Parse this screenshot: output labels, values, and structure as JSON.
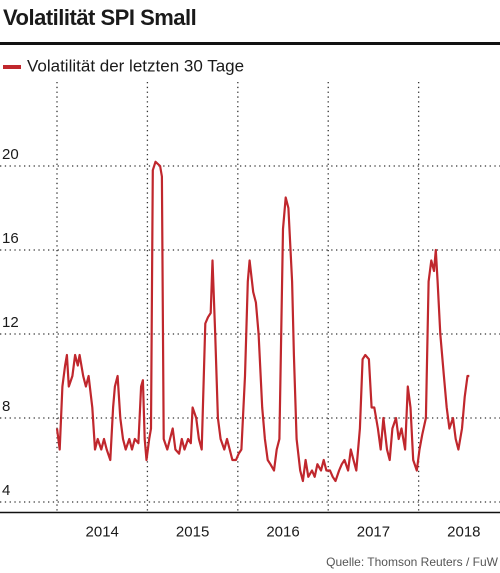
{
  "chart_data": {
    "type": "line",
    "title": "Volatilität SPI Small",
    "source": "Quelle: Thomson Reuters / FuW",
    "x": [
      2014.0,
      2014.03,
      2014.06,
      2014.09,
      2014.11,
      2014.13,
      2014.17,
      2014.2,
      2014.23,
      2014.25,
      2014.29,
      2014.32,
      2014.35,
      2014.39,
      2014.42,
      2014.45,
      2014.49,
      2014.52,
      2014.55,
      2014.59,
      2014.62,
      2014.64,
      2014.67,
      2014.7,
      2014.73,
      2014.76,
      2014.8,
      2014.83,
      2014.86,
      2014.9,
      2014.93,
      2014.95,
      2014.97,
      2014.99,
      2015.02,
      2015.04,
      2015.06,
      2015.09,
      2015.14,
      2015.16,
      2015.18,
      2015.22,
      2015.25,
      2015.28,
      2015.31,
      2015.35,
      2015.38,
      2015.41,
      2015.45,
      2015.48,
      2015.5,
      2015.54,
      2015.57,
      2015.6,
      2015.64,
      2015.67,
      2015.7,
      2015.72,
      2015.75,
      2015.78,
      2015.81,
      2015.85,
      2015.88,
      2015.91,
      2015.94,
      2015.98,
      2016.01,
      2016.04,
      2016.08,
      2016.11,
      2016.13,
      2016.17,
      2016.2,
      2016.23,
      2016.27,
      2016.3,
      2016.33,
      2016.36,
      2016.4,
      2016.43,
      2016.46,
      2016.5,
      2016.53,
      2016.56,
      2016.6,
      2016.62,
      2016.65,
      2016.69,
      2016.72,
      2016.75,
      2016.78,
      2016.82,
      2016.85,
      2016.88,
      2016.92,
      2016.95,
      2016.98,
      2017.02,
      2017.05,
      2017.08,
      2017.12,
      2017.15,
      2017.18,
      2017.22,
      2017.25,
      2017.28,
      2017.31,
      2017.35,
      2017.38,
      2017.41,
      2017.45,
      2017.48,
      2017.51,
      2017.55,
      2017.58,
      2017.61,
      2017.65,
      2017.68,
      2017.71,
      2017.75,
      2017.78,
      2017.81,
      2017.85,
      2017.88,
      2017.91,
      2017.94,
      2017.98,
      2018.01,
      2018.04,
      2018.08,
      2018.11,
      2018.14,
      2018.17,
      2018.19,
      2018.21,
      2018.24,
      2018.28,
      2018.31,
      2018.34,
      2018.38,
      2018.41,
      2018.44,
      2018.48,
      2018.51,
      2018.54,
      2018.56
    ],
    "series": [
      {
        "name": "Volatilität der letzten 30 Tage",
        "color": "#c0272d",
        "values": [
          7.5,
          6.5,
          9.5,
          10.5,
          11,
          9.5,
          10,
          11,
          10.5,
          11,
          10,
          9.5,
          10,
          8.5,
          6.5,
          7,
          6.5,
          7,
          6.5,
          6,
          8.5,
          9.5,
          10,
          8,
          7,
          6.5,
          7,
          6.5,
          7,
          6.8,
          9.5,
          9.8,
          7,
          6,
          7,
          7.5,
          19.8,
          20.2,
          20,
          19.5,
          7,
          6.5,
          7,
          7.5,
          6.5,
          6.3,
          7,
          6.5,
          7,
          6.8,
          8.5,
          8,
          7,
          6.5,
          12.5,
          12.8,
          13,
          15.5,
          12,
          8,
          7,
          6.5,
          7,
          6.5,
          6,
          6,
          6.3,
          6.5,
          10,
          14.5,
          15.5,
          14,
          13.5,
          12,
          8.5,
          7,
          6,
          5.8,
          5.5,
          6.5,
          7,
          17,
          18.5,
          18,
          14.5,
          11,
          7,
          5.5,
          5,
          6,
          5.2,
          5.5,
          5.2,
          5.8,
          5.5,
          6,
          5.5,
          5.5,
          5.2,
          5,
          5.5,
          5.8,
          6,
          5.5,
          6.5,
          6,
          5.5,
          7.5,
          10.8,
          11,
          10.8,
          8.5,
          8.5,
          7.5,
          6.5,
          8,
          6.5,
          6,
          7.5,
          8,
          7,
          7.5,
          6.5,
          9.5,
          8.5,
          6,
          5.5,
          6.5,
          7.2,
          8,
          14.5,
          15.5,
          15,
          16,
          14.5,
          12,
          10,
          8.5,
          7.5,
          8,
          7,
          6.5,
          7.5,
          9,
          10,
          10
        ]
      }
    ],
    "xlim": [
      2014,
      2018.9
    ],
    "xticks": [
      {
        "value": 2014.5,
        "label": "2014"
      },
      {
        "value": 2015.5,
        "label": "2015"
      },
      {
        "value": 2016.5,
        "label": "2016"
      },
      {
        "value": 2017.5,
        "label": "2017"
      },
      {
        "value": 2018.5,
        "label": "2018"
      }
    ],
    "xgrid": [
      2014,
      2015,
      2016,
      2017,
      2018
    ],
    "ylim": [
      3.5,
      24
    ],
    "yticks": [
      4,
      8,
      12,
      16,
      20
    ],
    "grid": true
  }
}
